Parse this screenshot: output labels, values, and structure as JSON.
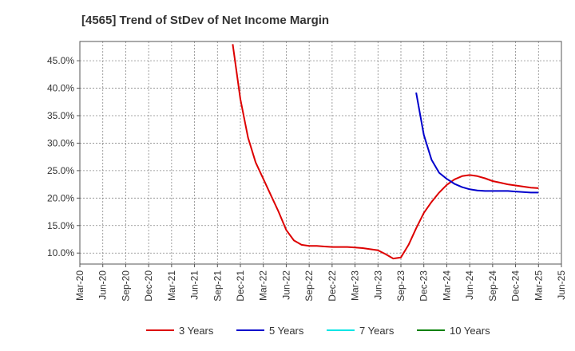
{
  "chart_data": {
    "type": "line",
    "title": "[4565]  Trend of StDev of Net Income Margin",
    "x": [
      "Mar-20",
      "Jun-20",
      "Sep-20",
      "Dec-20",
      "Mar-21",
      "Jun-21",
      "Sep-21",
      "Dec-21",
      "Mar-22",
      "Jun-22",
      "Sep-22",
      "Dec-22",
      "Mar-23",
      "Jun-23",
      "Sep-23",
      "Dec-23",
      "Mar-24",
      "Jun-24",
      "Sep-24",
      "Dec-24",
      "Mar-25",
      "Jun-25"
    ],
    "y_ticks": [
      10,
      15,
      20,
      25,
      30,
      35,
      40,
      45
    ],
    "y_tick_labels": [
      "10.0%",
      "15.0%",
      "20.0%",
      "25.0%",
      "30.0%",
      "35.0%",
      "40.0%",
      "45.0%"
    ],
    "ylim": [
      8,
      48.5
    ],
    "grid": true,
    "legend_position": "bottom",
    "series": [
      {
        "name": "3 Years",
        "color": "#dd0000",
        "points": [
          [
            "Nov-21",
            48.0
          ],
          [
            "Dec-21",
            38.0
          ],
          [
            "Jan-22",
            31.0
          ],
          [
            "Feb-22",
            26.5
          ],
          [
            "Mar-22",
            23.5
          ],
          [
            "Apr-22",
            20.5
          ],
          [
            "May-22",
            17.5
          ],
          [
            "Jun-22",
            14.2
          ],
          [
            "Jul-22",
            12.3
          ],
          [
            "Aug-22",
            11.5
          ],
          [
            "Sep-22",
            11.3
          ],
          [
            "Oct-22",
            11.3
          ],
          [
            "Nov-22",
            11.2
          ],
          [
            "Dec-22",
            11.1
          ],
          [
            "Jan-23",
            11.1
          ],
          [
            "Feb-23",
            11.1
          ],
          [
            "Mar-23",
            11.0
          ],
          [
            "Apr-23",
            10.9
          ],
          [
            "May-23",
            10.7
          ],
          [
            "Jun-23",
            10.5
          ],
          [
            "Jul-23",
            9.8
          ],
          [
            "Aug-23",
            9.0
          ],
          [
            "Sep-23",
            9.2
          ],
          [
            "Oct-23",
            11.5
          ],
          [
            "Nov-23",
            14.5
          ],
          [
            "Dec-23",
            17.3
          ],
          [
            "Jan-24",
            19.3
          ],
          [
            "Feb-24",
            21.0
          ],
          [
            "Mar-24",
            22.4
          ],
          [
            "Apr-24",
            23.4
          ],
          [
            "May-24",
            24.0
          ],
          [
            "Jun-24",
            24.2
          ],
          [
            "Jul-24",
            24.0
          ],
          [
            "Aug-24",
            23.6
          ],
          [
            "Sep-24",
            23.1
          ],
          [
            "Oct-24",
            22.8
          ],
          [
            "Nov-24",
            22.5
          ],
          [
            "Dec-24",
            22.3
          ],
          [
            "Jan-25",
            22.1
          ],
          [
            "Feb-25",
            21.9
          ],
          [
            "Mar-25",
            21.8
          ]
        ]
      },
      {
        "name": "5 Years",
        "color": "#0000cc",
        "points": [
          [
            "Nov-23",
            39.2
          ],
          [
            "Dec-23",
            31.5
          ],
          [
            "Jan-24",
            27.0
          ],
          [
            "Feb-24",
            24.6
          ],
          [
            "Mar-24",
            23.5
          ],
          [
            "Apr-24",
            22.6
          ],
          [
            "May-24",
            22.0
          ],
          [
            "Jun-24",
            21.6
          ],
          [
            "Jul-24",
            21.4
          ],
          [
            "Aug-24",
            21.3
          ],
          [
            "Sep-24",
            21.3
          ],
          [
            "Oct-24",
            21.3
          ],
          [
            "Nov-24",
            21.3
          ],
          [
            "Dec-24",
            21.2
          ],
          [
            "Jan-25",
            21.1
          ],
          [
            "Feb-25",
            21.0
          ],
          [
            "Mar-25",
            21.0
          ]
        ]
      },
      {
        "name": "7 Years",
        "color": "#00e5e5",
        "points": []
      },
      {
        "name": "10 Years",
        "color": "#008000",
        "points": []
      }
    ]
  }
}
